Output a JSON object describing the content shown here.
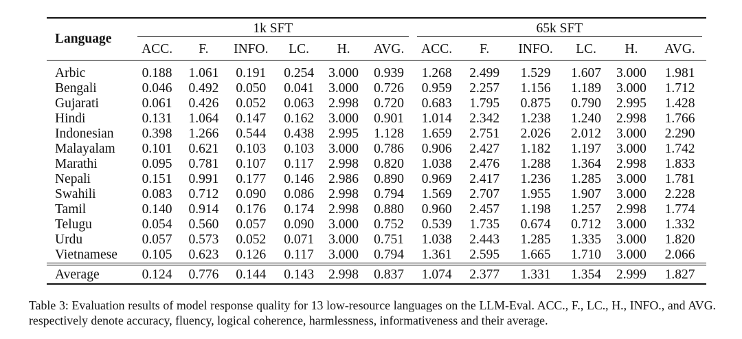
{
  "table": {
    "language_header": "Language",
    "groups": [
      "1k SFT",
      "65k SFT"
    ],
    "metrics": [
      "ACC.",
      "F.",
      "INFO.",
      "LC.",
      "H.",
      "AVG."
    ],
    "rows": [
      {
        "language": "Arbic",
        "values": [
          "0.188",
          "1.061",
          "0.191",
          "0.254",
          "3.000",
          "0.939",
          "1.268",
          "2.499",
          "1.529",
          "1.607",
          "3.000",
          "1.981"
        ]
      },
      {
        "language": "Bengali",
        "values": [
          "0.046",
          "0.492",
          "0.050",
          "0.041",
          "3.000",
          "0.726",
          "0.959",
          "2.257",
          "1.156",
          "1.189",
          "3.000",
          "1.712"
        ]
      },
      {
        "language": "Gujarati",
        "values": [
          "0.061",
          "0.426",
          "0.052",
          "0.063",
          "2.998",
          "0.720",
          "0.683",
          "1.795",
          "0.875",
          "0.790",
          "2.995",
          "1.428"
        ]
      },
      {
        "language": "Hindi",
        "values": [
          "0.131",
          "1.064",
          "0.147",
          "0.162",
          "3.000",
          "0.901",
          "1.014",
          "2.342",
          "1.238",
          "1.240",
          "2.998",
          "1.766"
        ]
      },
      {
        "language": "Indonesian",
        "values": [
          "0.398",
          "1.266",
          "0.544",
          "0.438",
          "2.995",
          "1.128",
          "1.659",
          "2.751",
          "2.026",
          "2.012",
          "3.000",
          "2.290"
        ]
      },
      {
        "language": "Malayalam",
        "values": [
          "0.101",
          "0.621",
          "0.103",
          "0.103",
          "3.000",
          "0.786",
          "0.906",
          "2.427",
          "1.182",
          "1.197",
          "3.000",
          "1.742"
        ]
      },
      {
        "language": "Marathi",
        "values": [
          "0.095",
          "0.781",
          "0.107",
          "0.117",
          "2.998",
          "0.820",
          "1.038",
          "2.476",
          "1.288",
          "1.364",
          "2.998",
          "1.833"
        ]
      },
      {
        "language": "Nepali",
        "values": [
          "0.151",
          "0.991",
          "0.177",
          "0.146",
          "2.986",
          "0.890",
          "0.969",
          "2.417",
          "1.236",
          "1.285",
          "3.000",
          "1.781"
        ]
      },
      {
        "language": "Swahili",
        "values": [
          "0.083",
          "0.712",
          "0.090",
          "0.086",
          "2.998",
          "0.794",
          "1.569",
          "2.707",
          "1.955",
          "1.907",
          "3.000",
          "2.228"
        ]
      },
      {
        "language": "Tamil",
        "values": [
          "0.140",
          "0.914",
          "0.176",
          "0.174",
          "2.998",
          "0.880",
          "0.960",
          "2.457",
          "1.198",
          "1.257",
          "2.998",
          "1.774"
        ]
      },
      {
        "language": "Telugu",
        "values": [
          "0.054",
          "0.560",
          "0.057",
          "0.090",
          "3.000",
          "0.752",
          "0.539",
          "1.735",
          "0.674",
          "0.712",
          "3.000",
          "1.332"
        ]
      },
      {
        "language": "Urdu",
        "values": [
          "0.057",
          "0.573",
          "0.052",
          "0.071",
          "3.000",
          "0.751",
          "1.038",
          "2.443",
          "1.285",
          "1.335",
          "3.000",
          "1.820"
        ]
      },
      {
        "language": "Vietnamese",
        "values": [
          "0.105",
          "0.623",
          "0.126",
          "0.117",
          "3.000",
          "0.794",
          "1.361",
          "2.595",
          "1.665",
          "1.710",
          "3.000",
          "2.066"
        ]
      }
    ],
    "average": {
      "language": "Average",
      "values": [
        "0.124",
        "0.776",
        "0.144",
        "0.143",
        "2.998",
        "0.837",
        "1.074",
        "2.377",
        "1.331",
        "1.354",
        "2.999",
        "1.827"
      ]
    }
  },
  "caption": {
    "text": "Table 3: Evaluation results of model response quality for 13 low-resource languages on the LLM-Eval. ACC., F., LC., H., INFO., and AVG. respectively denote accuracy, fluency, logical coherence, harmlessness, informativeness and their average."
  }
}
